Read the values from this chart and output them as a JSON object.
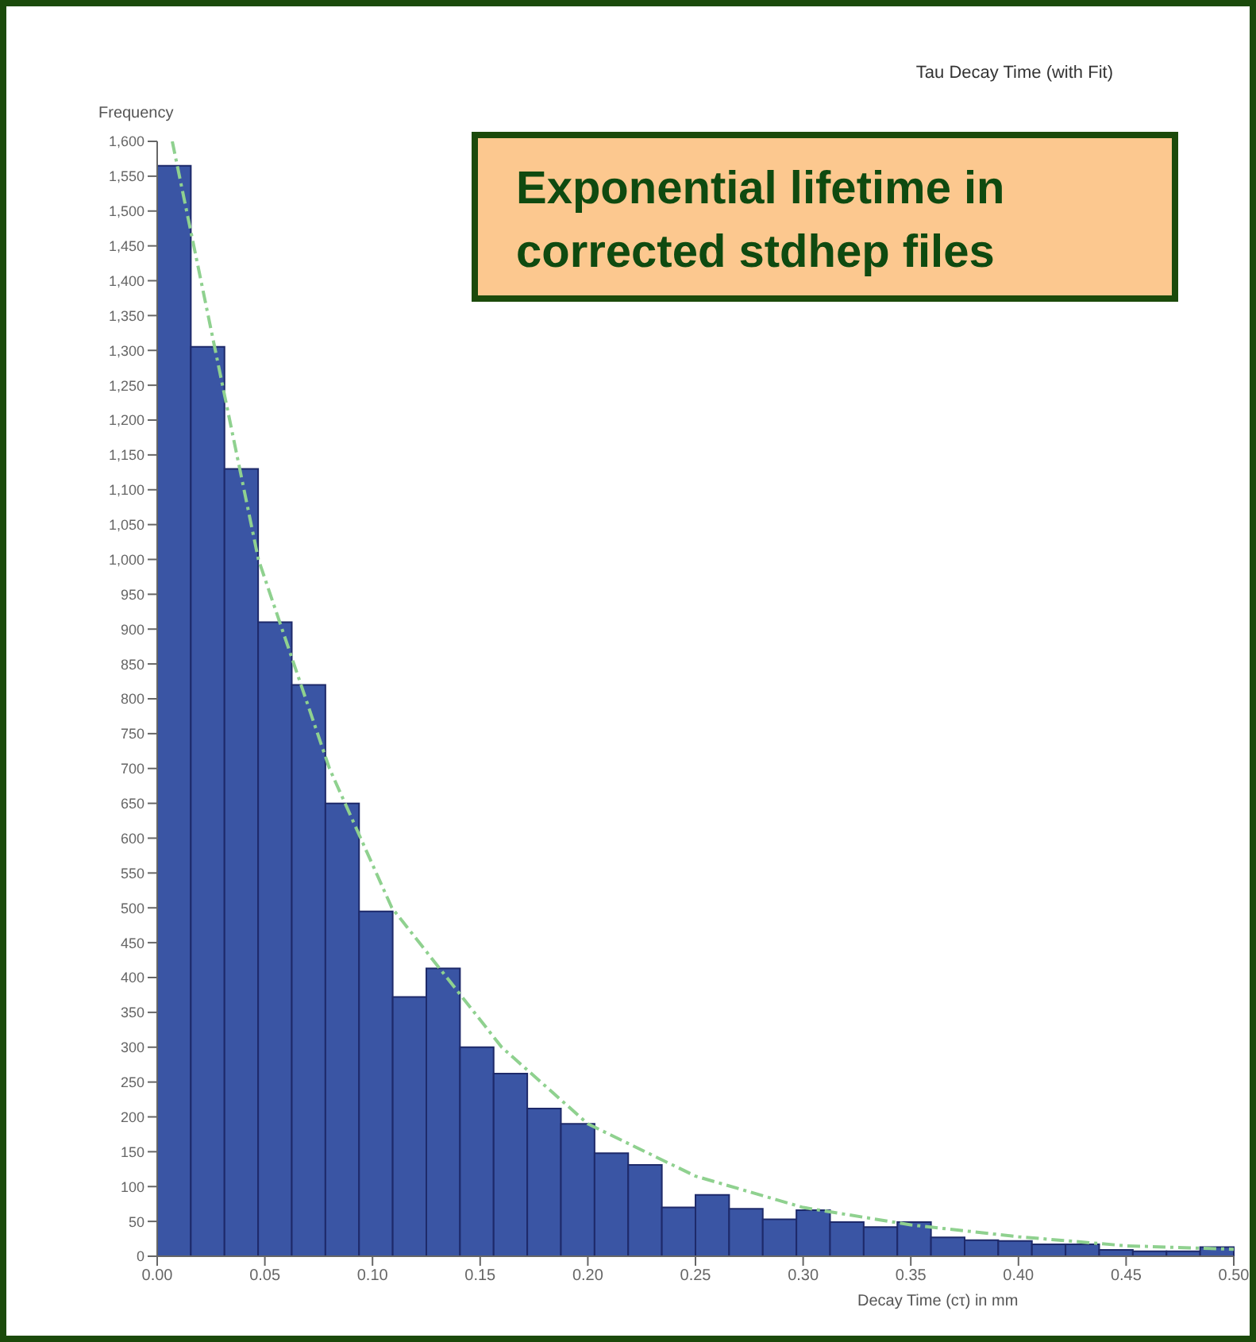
{
  "chart_data": {
    "type": "histogram",
    "title": "Tau Decay Time (with Fit)",
    "xlabel": "Decay Time (cτ) in mm",
    "ylabel": "Frequency",
    "annotations": [
      "Exponential lifetime in corrected stdhep files"
    ],
    "bins": [
      0,
      0.015625,
      0.03125,
      0.046875,
      0.0625,
      0.078125,
      0.09375,
      0.109375,
      0.125,
      0.140625,
      0.15625,
      0.171875,
      0.1875,
      0.203125,
      0.21875,
      0.234375,
      0.25,
      0.265625,
      0.28125,
      0.296875,
      0.3125,
      0.328125,
      0.34375,
      0.359375,
      0.375,
      0.390625,
      0.40625,
      0.421875,
      0.4375,
      0.453125,
      0.46875,
      0.484375,
      0.5
    ],
    "values": [
      1565,
      1305,
      1130,
      910,
      820,
      650,
      495,
      372,
      413,
      300,
      262,
      212,
      190,
      148,
      131,
      70,
      88,
      68,
      53,
      66,
      49,
      42,
      49,
      27,
      23,
      22,
      17,
      17,
      9,
      7,
      7,
      13
    ],
    "color": "#3a55a4",
    "series": [
      {
        "type": "line",
        "color": "#8fd18f",
        "line_style": "dashed",
        "x": [
          0.007,
          0.047,
          0.08,
          0.109,
          0.16,
          0.2,
          0.25,
          0.3,
          0.35,
          0.4,
          0.45,
          0.5
        ],
        "values": [
          1600,
          1000,
          700,
          500,
          300,
          190,
          115,
          70,
          45,
          28,
          15,
          10
        ]
      }
    ],
    "xlim": [
      0,
      0.5
    ],
    "xticks": [
      {
        "value": 0,
        "label": "0.00"
      },
      {
        "value": 0.05,
        "label": "0.05"
      },
      {
        "value": 0.1,
        "label": "0.10"
      },
      {
        "value": 0.15,
        "label": "0.15"
      },
      {
        "value": 0.2,
        "label": "0.20"
      },
      {
        "value": 0.25,
        "label": "0.25"
      },
      {
        "value": 0.3,
        "label": "0.30"
      },
      {
        "value": 0.35,
        "label": "0.35"
      },
      {
        "value": 0.4,
        "label": "0.40"
      },
      {
        "value": 0.45,
        "label": "0.45"
      },
      {
        "value": 0.5,
        "label": "0.50"
      }
    ],
    "ylim": [
      0,
      1600
    ],
    "yticks": [
      0,
      50,
      100,
      150,
      200,
      250,
      300,
      350,
      400,
      450,
      500,
      550,
      600,
      650,
      700,
      750,
      800,
      850,
      900,
      950,
      {
        "value": 1000,
        "label": "1,000"
      },
      {
        "value": 1050,
        "label": "1,050"
      },
      {
        "value": 1100,
        "label": "1,100"
      },
      {
        "value": 1150,
        "label": "1,150"
      },
      {
        "value": 1200,
        "label": "1,200"
      },
      {
        "value": 1250,
        "label": "1,250"
      },
      {
        "value": 1300,
        "label": "1,300"
      },
      {
        "value": 1350,
        "label": "1,350"
      },
      {
        "value": 1400,
        "label": "1,400"
      },
      {
        "value": 1450,
        "label": "1,450"
      },
      {
        "value": 1500,
        "label": "1,500"
      },
      {
        "value": 1550,
        "label": "1,550"
      },
      {
        "value": 1600,
        "label": "1,600"
      }
    ],
    "grid": false,
    "legend": false
  }
}
